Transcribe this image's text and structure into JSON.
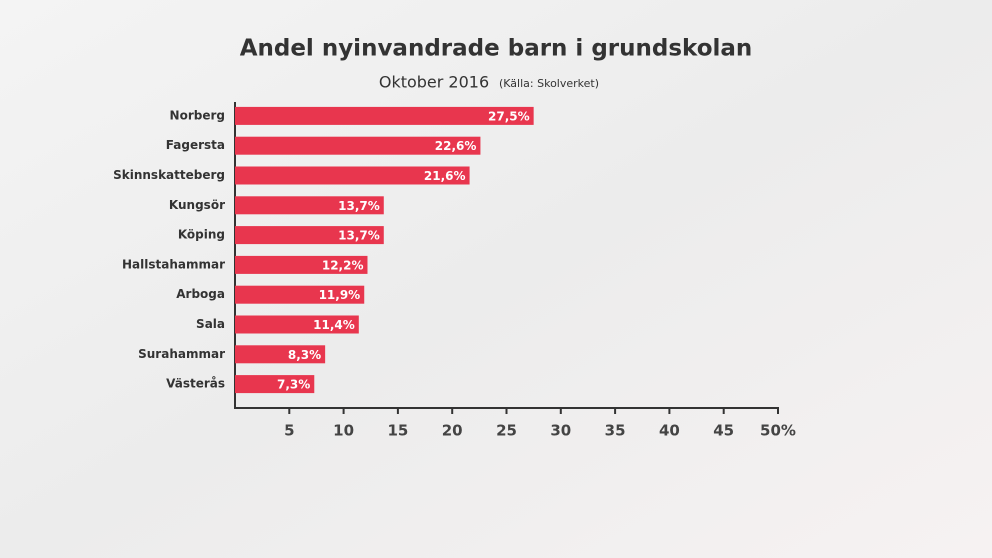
{
  "chart_data": {
    "type": "bar",
    "orientation": "horizontal",
    "title": "Andel nyinvandrade barn i grundskolan",
    "subtitle": "Oktober 2016",
    "source": "(Källa: Skolverket)",
    "categories": [
      "Norberg",
      "Fagersta",
      "Skinnskatteberg",
      "Kungsör",
      "Köping",
      "Hallstahammar",
      "Arboga",
      "Sala",
      "Surahammar",
      "Västerås"
    ],
    "values": [
      27.5,
      22.6,
      21.6,
      13.7,
      13.7,
      12.2,
      11.9,
      11.4,
      8.3,
      7.3
    ],
    "value_labels": [
      "27,5%",
      "22,6%",
      "21,6%",
      "13,7%",
      "13,7%",
      "12,2%",
      "11,9%",
      "11,4%",
      "8,3%",
      "7,3%"
    ],
    "color": "#e8364e",
    "xlim": [
      0,
      50
    ],
    "xticks": [
      5,
      10,
      15,
      20,
      25,
      30,
      35,
      40,
      45,
      {
        "value": 50,
        "label": "50%"
      }
    ]
  }
}
